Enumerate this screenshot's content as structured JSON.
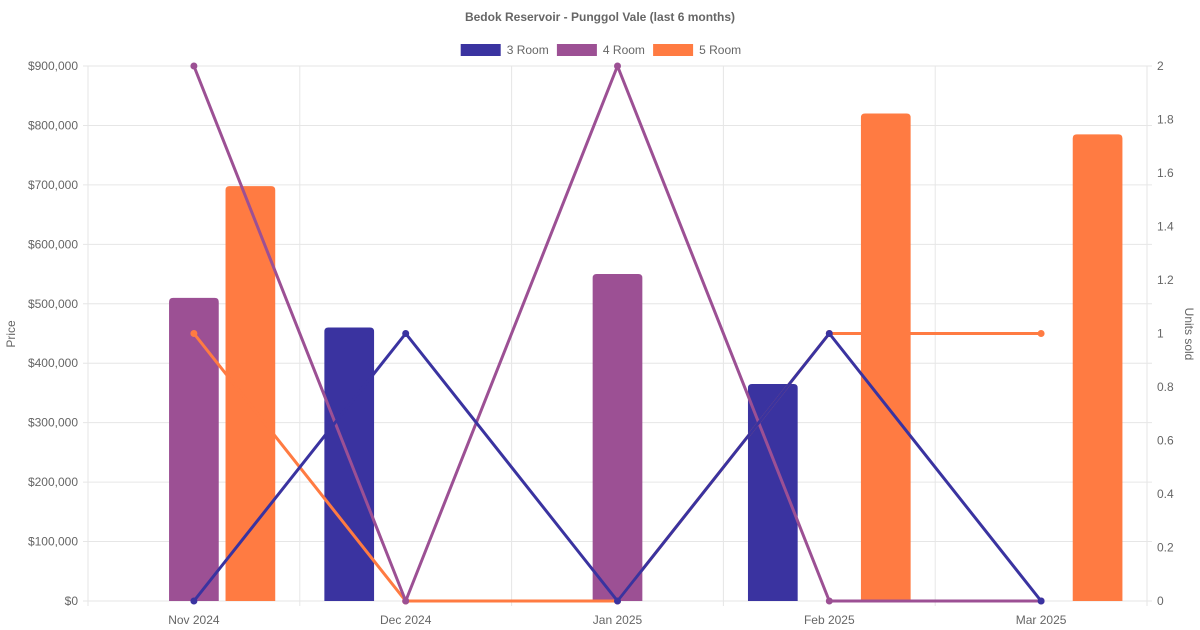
{
  "chart_data": {
    "type": "bar",
    "title": "Bedok Reservoir - Punggol Vale (last 6 months)",
    "categories": [
      "Nov 2024",
      "Dec 2024",
      "Jan 2025",
      "Feb 2025",
      "Mar 2025"
    ],
    "y_left": {
      "label": "Price",
      "range": [
        0,
        900000
      ],
      "ticks": [
        0,
        100000,
        200000,
        300000,
        400000,
        500000,
        600000,
        700000,
        800000,
        900000
      ],
      "tick_labels": [
        "$0",
        "$100,000",
        "$200,000",
        "$300,000",
        "$400,000",
        "$500,000",
        "$600,000",
        "$700,000",
        "$800,000",
        "$900,000"
      ]
    },
    "y_right": {
      "label": "Units sold",
      "range": [
        0,
        2
      ],
      "ticks": [
        0,
        0.2,
        0.4,
        0.6,
        0.8,
        1,
        1.2,
        1.4,
        1.6,
        1.8,
        2
      ],
      "tick_labels": [
        "0",
        "0.2",
        "0.4",
        "0.6",
        "0.8",
        "1",
        "1.2",
        "1.4",
        "1.6",
        "1.8",
        "2"
      ]
    },
    "grid": true,
    "legend_position": "top",
    "series": [
      {
        "name": "3 Room",
        "color": "#3a33a0",
        "price": [
          null,
          460000,
          null,
          365000,
          null
        ],
        "units": [
          0,
          1,
          0,
          1,
          0
        ]
      },
      {
        "name": "4 Room",
        "color": "#9c5094",
        "price": [
          510000,
          null,
          550000,
          null,
          null
        ],
        "units": [
          2,
          0,
          2,
          0,
          0
        ]
      },
      {
        "name": "5 Room",
        "color": "#ff7b42",
        "price": [
          698000,
          null,
          null,
          820000,
          785000
        ],
        "units": [
          1,
          0,
          0,
          1,
          1
        ]
      }
    ]
  }
}
